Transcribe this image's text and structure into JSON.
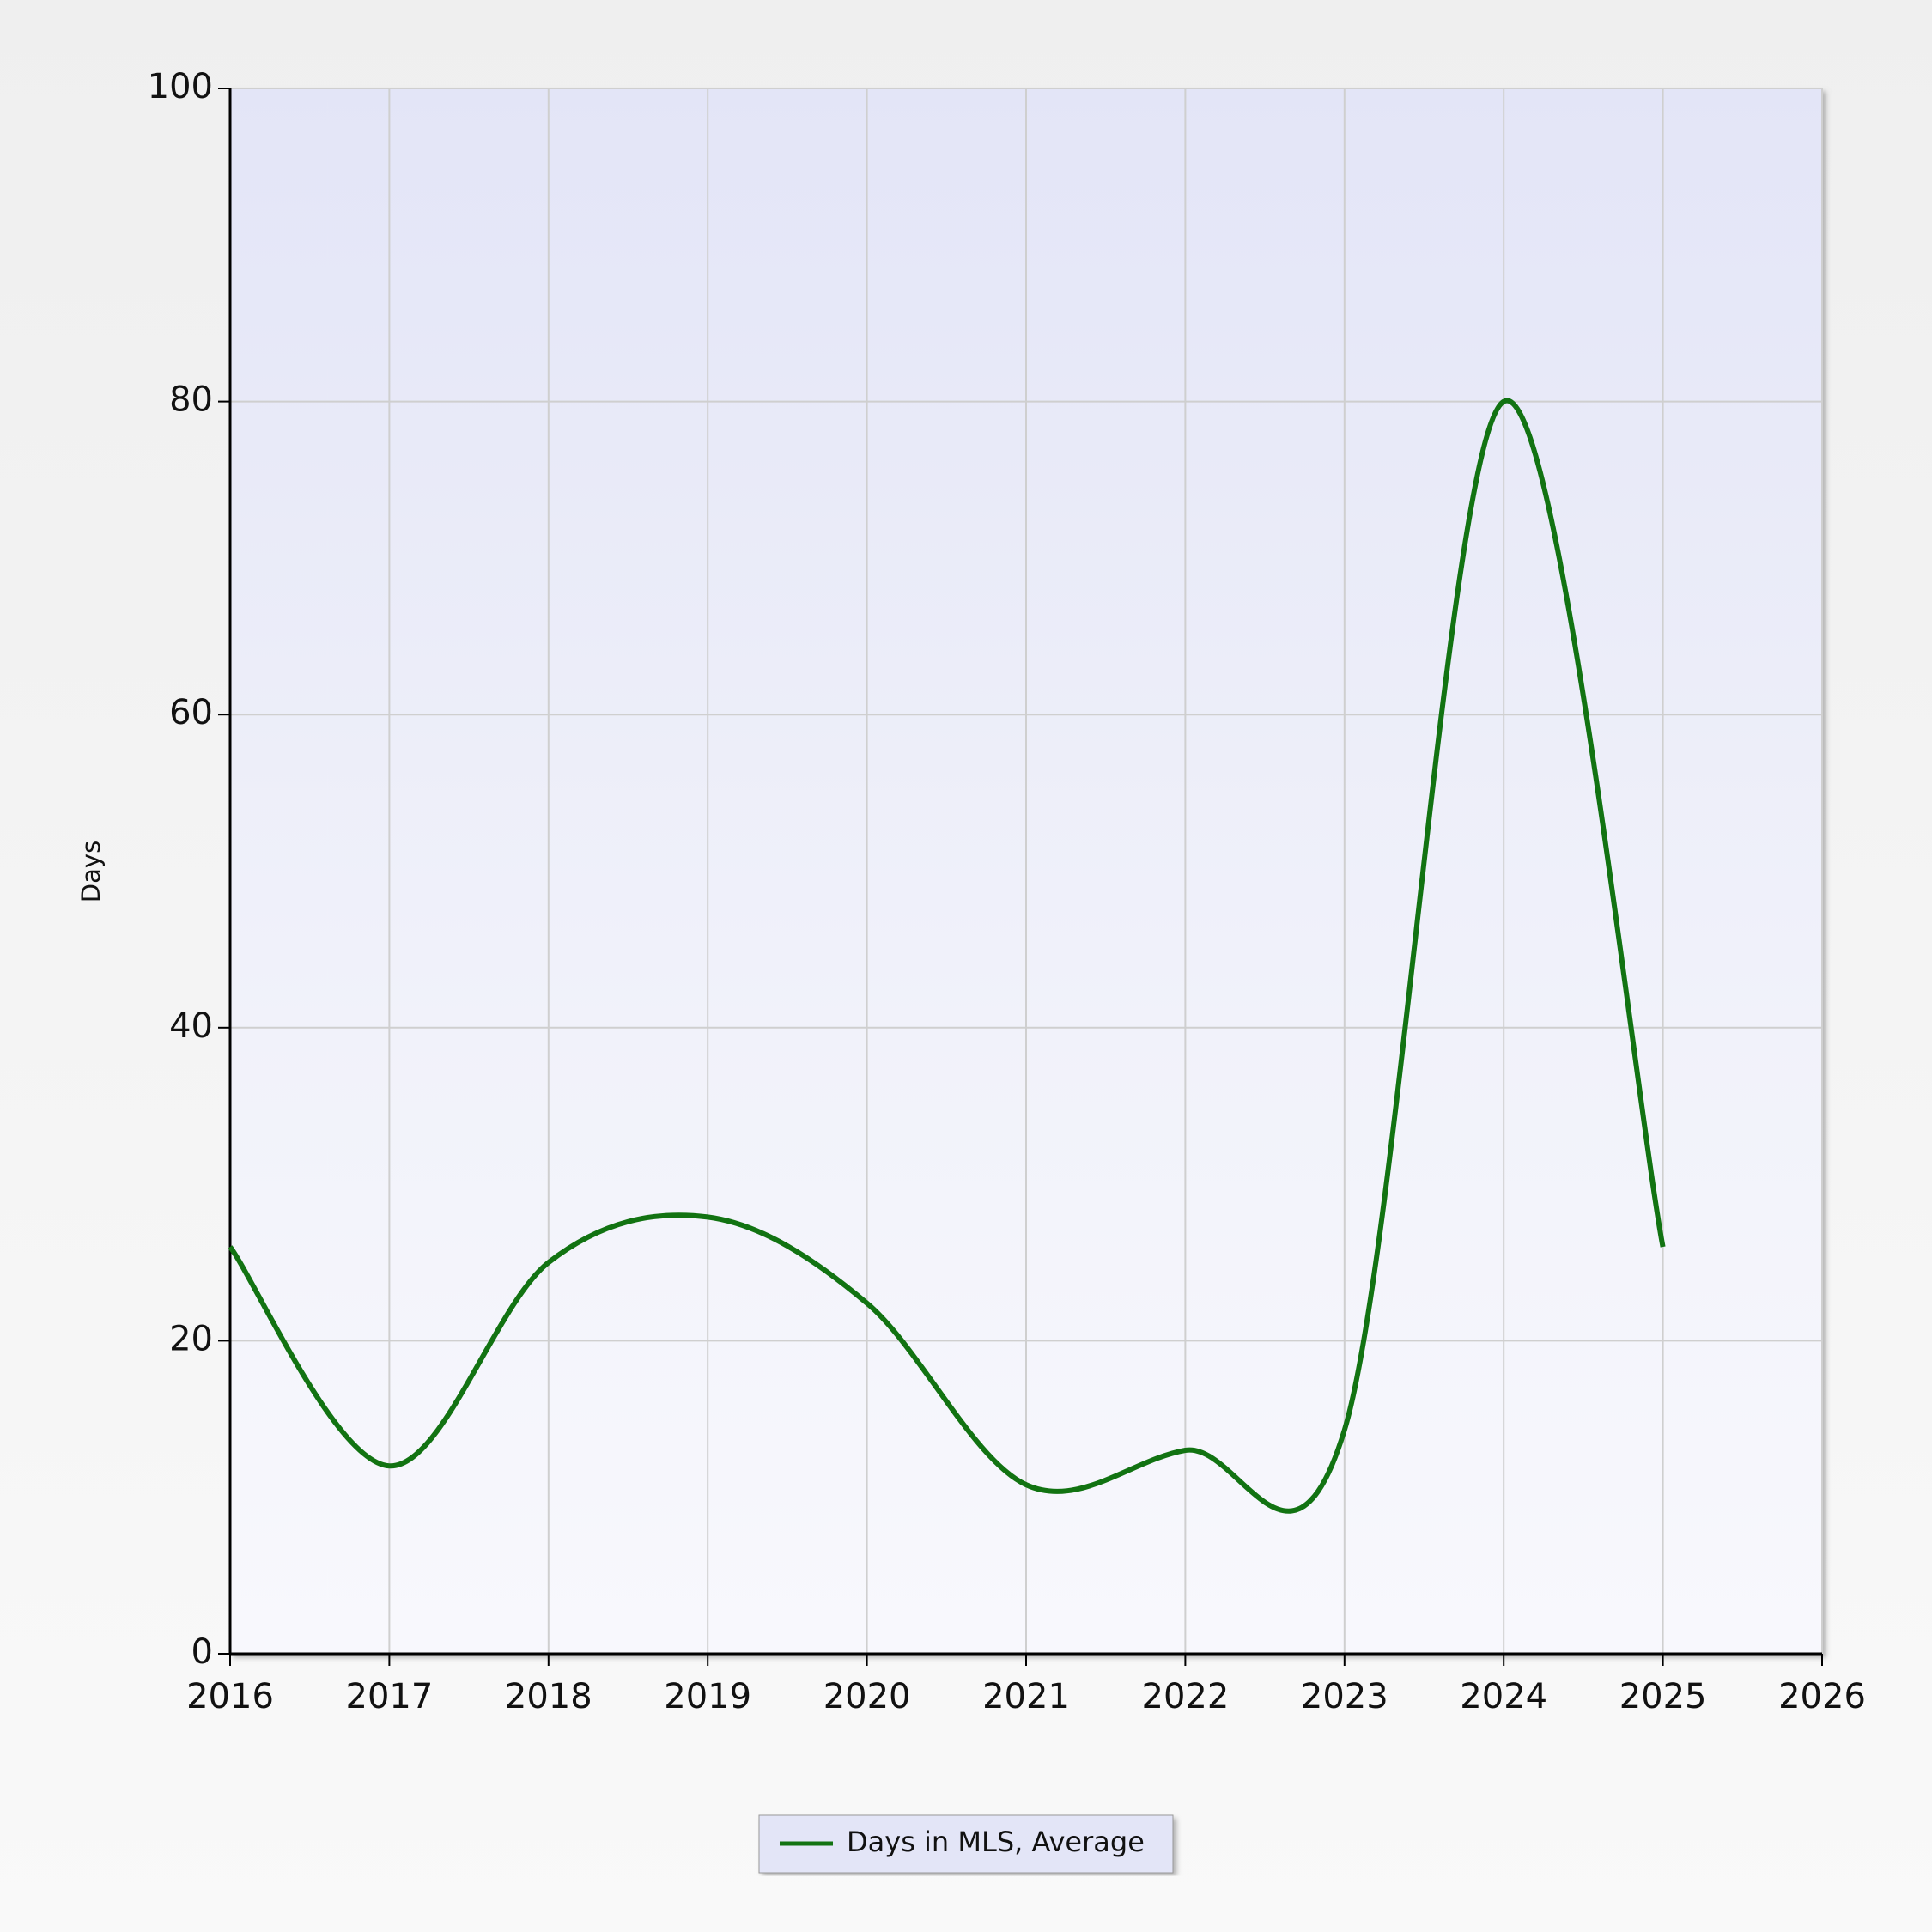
{
  "chart_data": {
    "type": "line",
    "y_label": "Days",
    "x": [
      2016,
      2017,
      2018,
      2019,
      2020,
      2021,
      2022,
      2023,
      2024,
      2025
    ],
    "series": [
      {
        "name": "Days in MLS, Average",
        "color": "#127312",
        "values": [
          26,
          12,
          25,
          27.9,
          22.4,
          10.8,
          13,
          14.3,
          80,
          26
        ]
      }
    ],
    "xlim": [
      2016,
      2026
    ],
    "xticks": [
      2016,
      2017,
      2018,
      2019,
      2020,
      2021,
      2022,
      2023,
      2024,
      2025,
      2026
    ],
    "ylim": [
      0,
      100
    ],
    "yticks": [
      0,
      20,
      40,
      60,
      80,
      100
    ],
    "grid": true,
    "smooth": true,
    "legend": "bottom"
  }
}
